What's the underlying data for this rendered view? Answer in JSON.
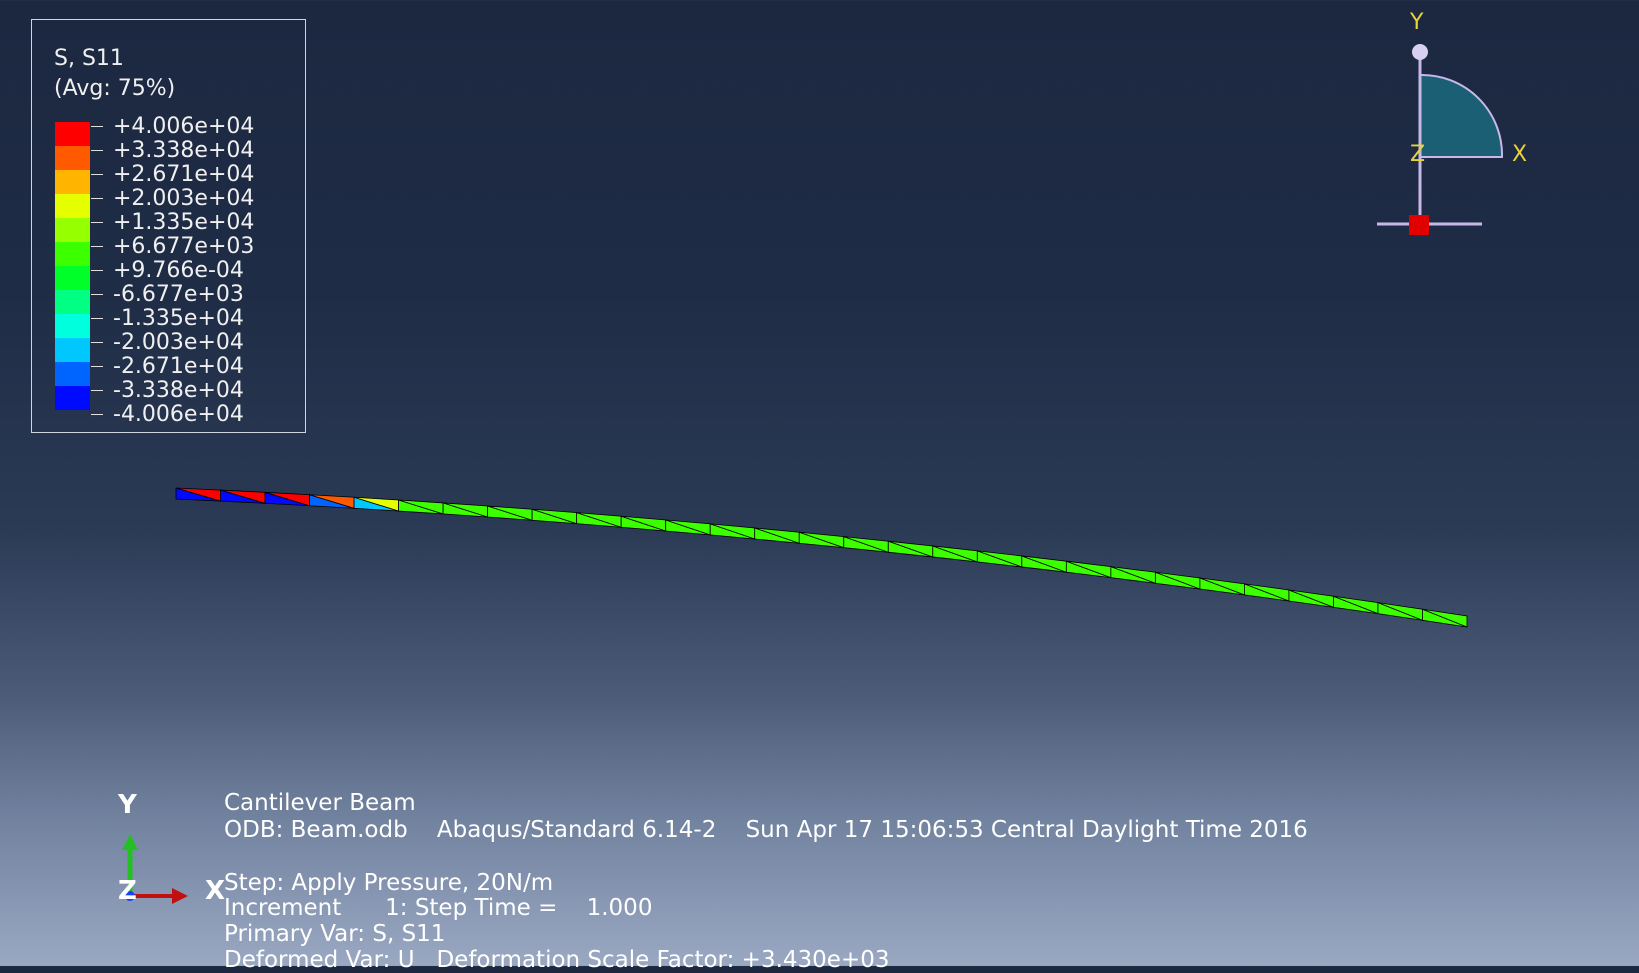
{
  "legend": {
    "title_line1": "S, S11",
    "title_line2": "(Avg: 75%)",
    "levels": [
      {
        "label": "+4.006e+04",
        "color": "#ff0000"
      },
      {
        "label": "+3.338e+04",
        "color": "#ff5a00"
      },
      {
        "label": "+2.671e+04",
        "color": "#ffb400"
      },
      {
        "label": "+2.003e+04",
        "color": "#e6ff00"
      },
      {
        "label": "+1.335e+04",
        "color": "#96ff00"
      },
      {
        "label": "+6.677e+03",
        "color": "#3cff00"
      },
      {
        "label": "+9.766e-04",
        "color": "#00ff28"
      },
      {
        "label": "-6.677e+03",
        "color": "#00ff82"
      },
      {
        "label": "-1.335e+04",
        "color": "#00ffdc"
      },
      {
        "label": "-2.003e+04",
        "color": "#00c8ff"
      },
      {
        "label": "-2.671e+04",
        "color": "#0064ff"
      },
      {
        "label": "-3.338e+04",
        "color": "#000aff"
      },
      {
        "label": "-4.006e+04",
        "color": null
      }
    ]
  },
  "view_triad": {
    "y": "Y",
    "z": "Z",
    "x": "X"
  },
  "coord_triad": {
    "y": "Y",
    "z": "Z",
    "x": "X"
  },
  "info": {
    "model": "Cantilever Beam",
    "odb_line": "ODB: Beam.odb    Abaqus/Standard 6.14-2    Sun Apr 17 15:06:53 Central Daylight Time 2016",
    "step": "Step: Apply Pressure, 20N/m",
    "increment": "Increment      1: Step Time =    1.000",
    "primary_var": "Primary Var: S, S11",
    "deformed_var": "Deformed Var: U   Deformation Scale Factor: +3.430e+03"
  },
  "beam": {
    "element_count": 29,
    "element_colors": [
      "#ff0000",
      "#ff0000",
      "#ff0000",
      "#ff5a00",
      "#e6ff00",
      "#3cff00",
      "#3cff00",
      "#3cff00",
      "#3cff00",
      "#3cff00",
      "#3cff00",
      "#3cff00",
      "#3cff00",
      "#3cff00",
      "#3cff00",
      "#3cff00",
      "#3cff00",
      "#3cff00",
      "#3cff00",
      "#3cff00",
      "#3cff00",
      "#3cff00",
      "#3cff00",
      "#3cff00",
      "#3cff00",
      "#3cff00",
      "#3cff00",
      "#3cff00",
      "#3cff00"
    ],
    "lower_colors": [
      "#000aff",
      "#000aff",
      "#000aff",
      "#0064ff",
      "#00c8ff",
      "#3cff00",
      "#3cff00",
      "#3cff00",
      "#3cff00",
      "#3cff00",
      "#3cff00",
      "#3cff00",
      "#3cff00",
      "#3cff00",
      "#3cff00",
      "#3cff00",
      "#3cff00",
      "#3cff00",
      "#3cff00",
      "#3cff00",
      "#3cff00",
      "#3cff00",
      "#3cff00",
      "#3cff00",
      "#3cff00",
      "#3cff00",
      "#3cff00",
      "#3cff00",
      "#3cff00"
    ]
  }
}
